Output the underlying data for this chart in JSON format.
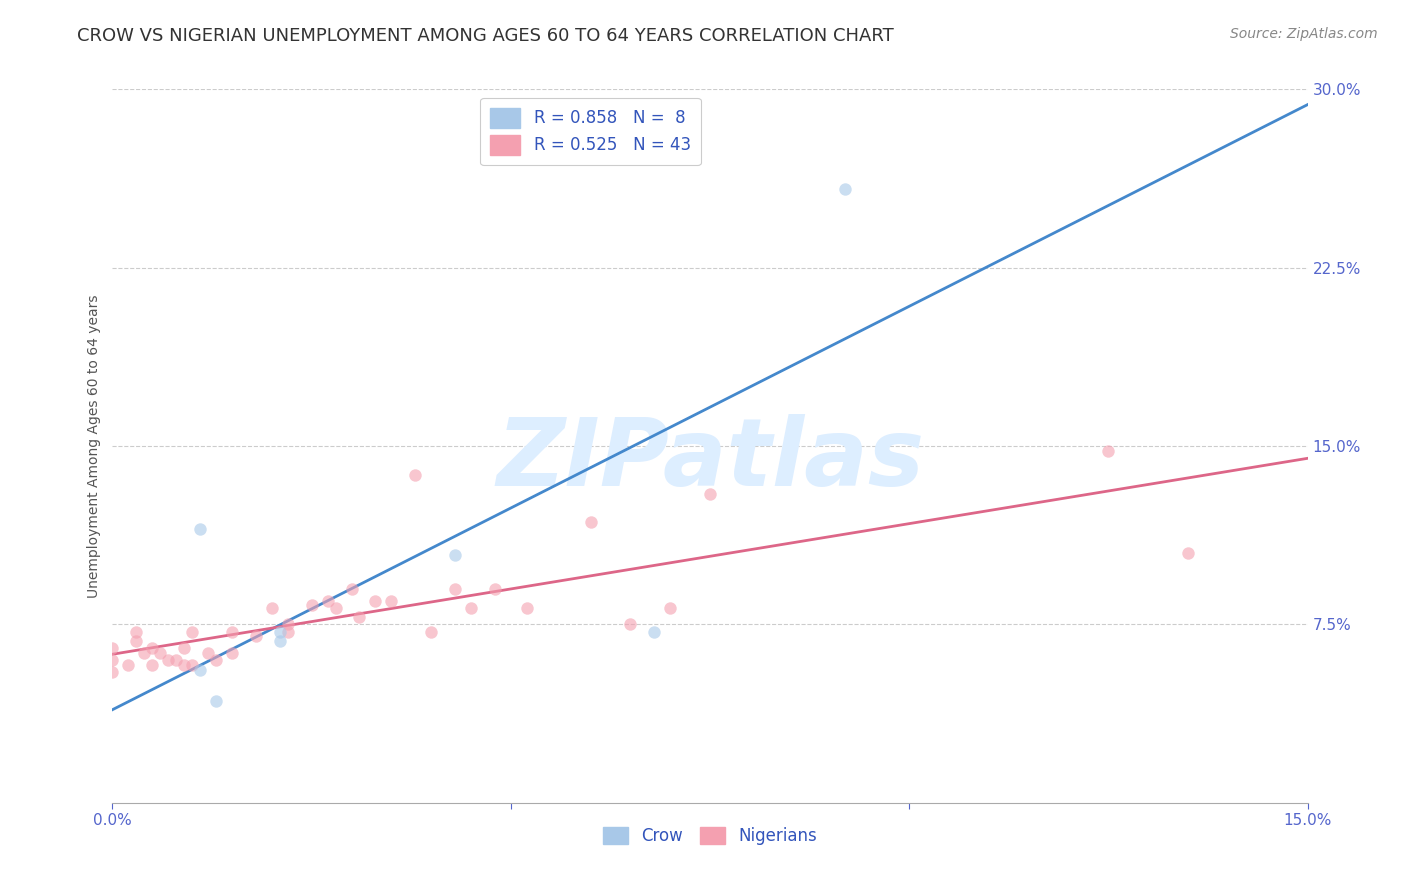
{
  "title": "CROW VS NIGERIAN UNEMPLOYMENT AMONG AGES 60 TO 64 YEARS CORRELATION CHART",
  "source": "Source: ZipAtlas.com",
  "ylabel": "Unemployment Among Ages 60 to 64 years",
  "xlim": [
    0.0,
    0.15
  ],
  "ylim": [
    0.0,
    0.3
  ],
  "xtick_positions": [
    0.0,
    0.05,
    0.1,
    0.15
  ],
  "xtick_labels": [
    "0.0%",
    "",
    "",
    "15.0%"
  ],
  "ytick_positions": [
    0.075,
    0.15,
    0.225,
    0.3
  ],
  "ytick_labels": [
    "7.5%",
    "15.0%",
    "22.5%",
    "30.0%"
  ],
  "crow_R": 0.858,
  "crow_N": 8,
  "nigerian_R": 0.525,
  "nigerian_N": 43,
  "crow_color": "#a8c8e8",
  "nigerian_color": "#f4a0b0",
  "crow_line_color": "#4488cc",
  "nigerian_line_color": "#dd6688",
  "background_color": "#ffffff",
  "grid_color": "#cccccc",
  "watermark_text": "ZIPatlas",
  "watermark_color": "#ddeeff",
  "legend_text_color": "#3355bb",
  "legend_border_color": "#cccccc",
  "title_color": "#333333",
  "source_color": "#888888",
  "tick_color": "#5566cc",
  "ylabel_color": "#555555",
  "crow_x": [
    0.011,
    0.011,
    0.013,
    0.021,
    0.021,
    0.043,
    0.068,
    0.092
  ],
  "crow_y": [
    0.115,
    0.056,
    0.043,
    0.072,
    0.068,
    0.104,
    0.072,
    0.258
  ],
  "nigerian_x": [
    0.0,
    0.0,
    0.0,
    0.002,
    0.003,
    0.003,
    0.004,
    0.005,
    0.005,
    0.006,
    0.007,
    0.008,
    0.009,
    0.009,
    0.01,
    0.01,
    0.012,
    0.013,
    0.015,
    0.015,
    0.018,
    0.02,
    0.022,
    0.022,
    0.025,
    0.027,
    0.028,
    0.03,
    0.031,
    0.033,
    0.035,
    0.038,
    0.04,
    0.043,
    0.045,
    0.048,
    0.052,
    0.06,
    0.065,
    0.07,
    0.075,
    0.125,
    0.135
  ],
  "nigerian_y": [
    0.055,
    0.06,
    0.065,
    0.058,
    0.072,
    0.068,
    0.063,
    0.058,
    0.065,
    0.063,
    0.06,
    0.06,
    0.065,
    0.058,
    0.058,
    0.072,
    0.063,
    0.06,
    0.072,
    0.063,
    0.07,
    0.082,
    0.075,
    0.072,
    0.083,
    0.085,
    0.082,
    0.09,
    0.078,
    0.085,
    0.085,
    0.138,
    0.072,
    0.09,
    0.082,
    0.09,
    0.082,
    0.118,
    0.075,
    0.082,
    0.13,
    0.148,
    0.105
  ],
  "title_fontsize": 13,
  "source_fontsize": 10,
  "label_fontsize": 10,
  "legend_fontsize": 12,
  "tick_fontsize": 11,
  "marker_size": 80,
  "marker_alpha": 0.6,
  "line_width": 2.0
}
